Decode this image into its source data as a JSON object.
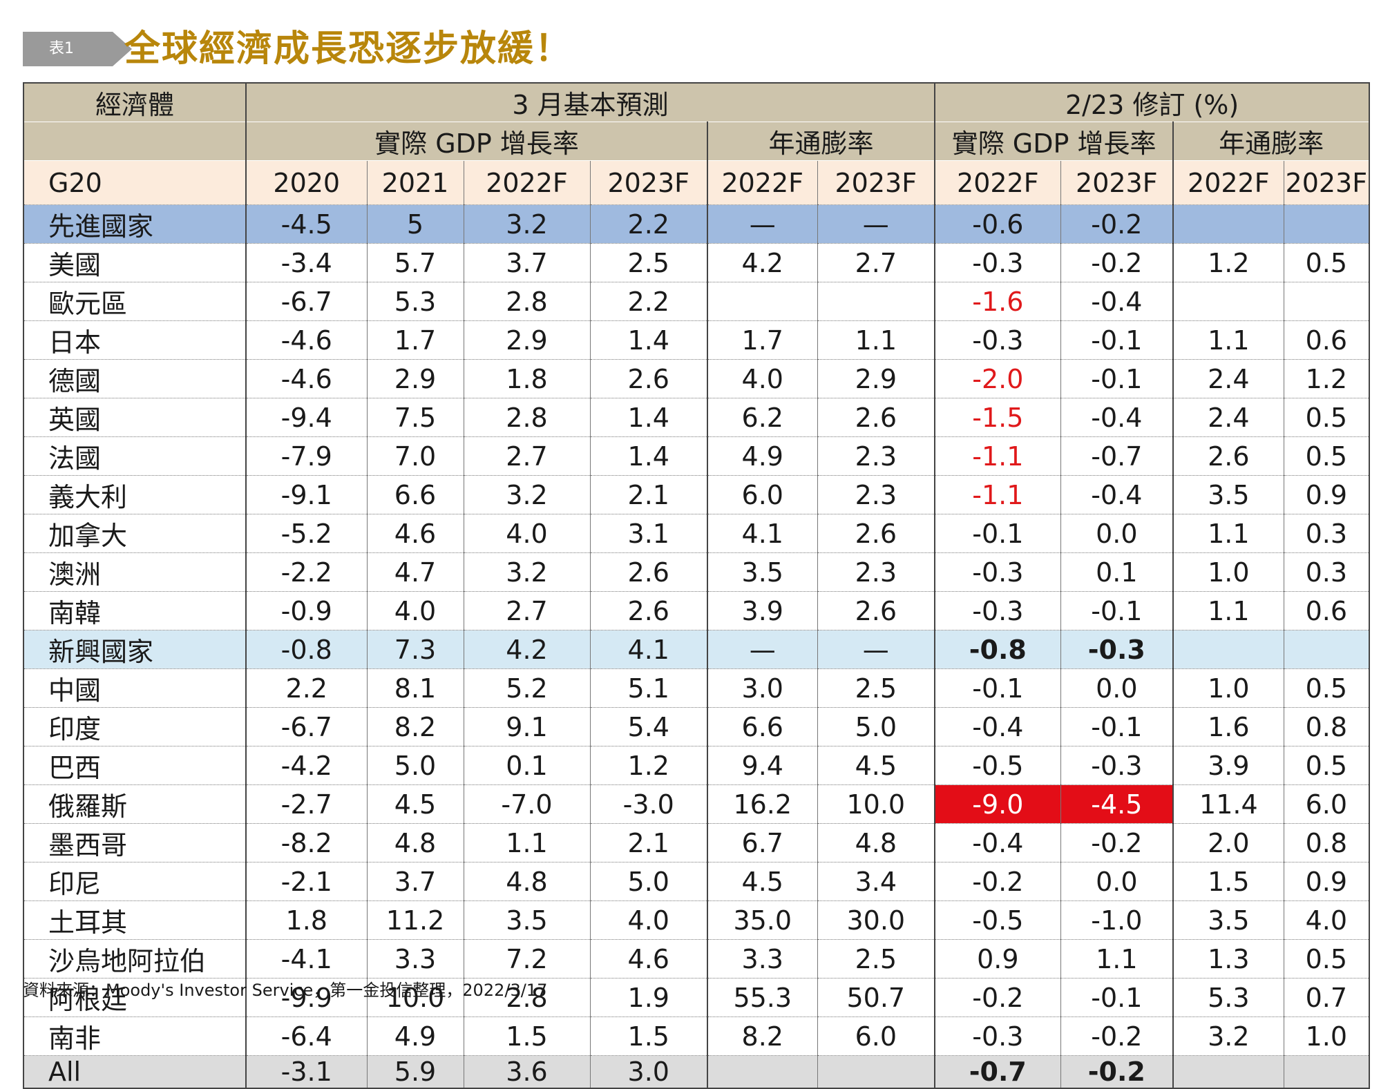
{
  "header": {
    "tag": "表1",
    "title": "全球經濟成長恐逐步放緩！"
  },
  "chart_data": {
    "type": "table",
    "header_row1": {
      "economy": "經濟體",
      "group_march": "3 月基本預測",
      "group_revision": "2/23 修訂 (%)"
    },
    "header_row2": {
      "gdp_march": "實際 GDP 增長率",
      "cpi_march": "年通膨率",
      "gdp_rev": "實際 GDP 增長率",
      "cpi_rev": "年通膨率"
    },
    "columns": [
      "G20",
      "2020",
      "2021",
      "2022F",
      "2023F",
      "2022F",
      "2023F",
      "2022F",
      "2023F",
      "2022F",
      "2023F"
    ],
    "rows": [
      {
        "name": "先進國家",
        "cells": [
          "-4.5",
          "5",
          "3.2",
          "2.2",
          "—",
          "—",
          "-0.6",
          "-0.2",
          "",
          ""
        ],
        "style": "adv"
      },
      {
        "name": "美國",
        "cells": [
          "-3.4",
          "5.7",
          "3.7",
          "2.5",
          "4.2",
          "2.7",
          "-0.3",
          "-0.2",
          "1.2",
          "0.5"
        ]
      },
      {
        "name": "歐元區",
        "cells": [
          "-6.7",
          "5.3",
          "2.8",
          "2.2",
          "",
          "",
          "-1.6",
          "-0.4",
          "",
          ""
        ],
        "red": [
          6
        ]
      },
      {
        "name": "日本",
        "cells": [
          "-4.6",
          "1.7",
          "2.9",
          "1.4",
          "1.7",
          "1.1",
          "-0.3",
          "-0.1",
          "1.1",
          "0.6"
        ]
      },
      {
        "name": "德國",
        "cells": [
          "-4.6",
          "2.9",
          "1.8",
          "2.6",
          "4.0",
          "2.9",
          "-2.0",
          "-0.1",
          "2.4",
          "1.2"
        ],
        "red": [
          6
        ]
      },
      {
        "name": "英國",
        "cells": [
          "-9.4",
          "7.5",
          "2.8",
          "1.4",
          "6.2",
          "2.6",
          "-1.5",
          "-0.4",
          "2.4",
          "0.5"
        ],
        "red": [
          6
        ]
      },
      {
        "name": "法國",
        "cells": [
          "-7.9",
          "7.0",
          "2.7",
          "1.4",
          "4.9",
          "2.3",
          "-1.1",
          "-0.7",
          "2.6",
          "0.5"
        ],
        "red": [
          6
        ]
      },
      {
        "name": "義大利",
        "cells": [
          "-9.1",
          "6.6",
          "3.2",
          "2.1",
          "6.0",
          "2.3",
          "-1.1",
          "-0.4",
          "3.5",
          "0.9"
        ],
        "red": [
          6
        ]
      },
      {
        "name": "加拿大",
        "cells": [
          "-5.2",
          "4.6",
          "4.0",
          "3.1",
          "4.1",
          "2.6",
          "-0.1",
          "0.0",
          "1.1",
          "0.3"
        ]
      },
      {
        "name": "澳洲",
        "cells": [
          "-2.2",
          "4.7",
          "3.2",
          "2.6",
          "3.5",
          "2.3",
          "-0.3",
          "0.1",
          "1.0",
          "0.3"
        ]
      },
      {
        "name": "南韓",
        "cells": [
          "-0.9",
          "4.0",
          "2.7",
          "2.6",
          "3.9",
          "2.6",
          "-0.3",
          "-0.1",
          "1.1",
          "0.6"
        ]
      },
      {
        "name": "新興國家",
        "cells": [
          "-0.8",
          "7.3",
          "4.2",
          "4.1",
          "—",
          "—",
          "-0.8",
          "-0.3",
          "",
          ""
        ],
        "style": "emg",
        "bold": [
          6,
          7
        ]
      },
      {
        "name": "中國",
        "cells": [
          "2.2",
          "8.1",
          "5.2",
          "5.1",
          "3.0",
          "2.5",
          "-0.1",
          "0.0",
          "1.0",
          "0.5"
        ]
      },
      {
        "name": "印度",
        "cells": [
          "-6.7",
          "8.2",
          "9.1",
          "5.4",
          "6.6",
          "5.0",
          "-0.4",
          "-0.1",
          "1.6",
          "0.8"
        ]
      },
      {
        "name": "巴西",
        "cells": [
          "-4.2",
          "5.0",
          "0.1",
          "1.2",
          "9.4",
          "4.5",
          "-0.5",
          "-0.3",
          "3.9",
          "0.5"
        ]
      },
      {
        "name": "俄羅斯",
        "cells": [
          "-2.7",
          "4.5",
          "-7.0",
          "-3.0",
          "16.2",
          "10.0",
          "-9.0",
          "-4.5",
          "11.4",
          "6.0"
        ],
        "redbg": [
          6,
          7
        ]
      },
      {
        "name": "墨西哥",
        "cells": [
          "-8.2",
          "4.8",
          "1.1",
          "2.1",
          "6.7",
          "4.8",
          "-0.4",
          "-0.2",
          "2.0",
          "0.8"
        ]
      },
      {
        "name": "印尼",
        "cells": [
          "-2.1",
          "3.7",
          "4.8",
          "5.0",
          "4.5",
          "3.4",
          "-0.2",
          "0.0",
          "1.5",
          "0.9"
        ]
      },
      {
        "name": "土耳其",
        "cells": [
          "1.8",
          "11.2",
          "3.5",
          "4.0",
          "35.0",
          "30.0",
          "-0.5",
          "-1.0",
          "3.5",
          "4.0"
        ]
      },
      {
        "name": "沙烏地阿拉伯",
        "cells": [
          "-4.1",
          "3.3",
          "7.2",
          "4.6",
          "3.3",
          "2.5",
          "0.9",
          "1.1",
          "1.3",
          "0.5"
        ]
      },
      {
        "name": "阿根廷",
        "cells": [
          "-9.9",
          "10.0",
          "2.8",
          "1.9",
          "55.3",
          "50.7",
          "-0.2",
          "-0.1",
          "5.3",
          "0.7"
        ]
      },
      {
        "name": "南非",
        "cells": [
          "-6.4",
          "4.9",
          "1.5",
          "1.5",
          "8.2",
          "6.0",
          "-0.3",
          "-0.2",
          "3.2",
          "1.0"
        ]
      },
      {
        "name": "All",
        "cells": [
          "-3.1",
          "5.9",
          "3.6",
          "3.0",
          "",
          "",
          "-0.7",
          "-0.2",
          "",
          ""
        ],
        "style": "all",
        "bold": [
          6,
          7
        ]
      }
    ]
  },
  "footer": {
    "source": "資料來源：Moody's Investor Service，第一金投信整理，2022/3/17"
  },
  "colors": {
    "title": "#b8860b",
    "header_bg": "#cdc4ac",
    "year_row_bg": "#fcebdc",
    "advanced_bg": "#9fbadf",
    "emerging_bg": "#d5e9f4",
    "all_bg": "#dcdcdc",
    "highlight_red": "#e30d17"
  }
}
